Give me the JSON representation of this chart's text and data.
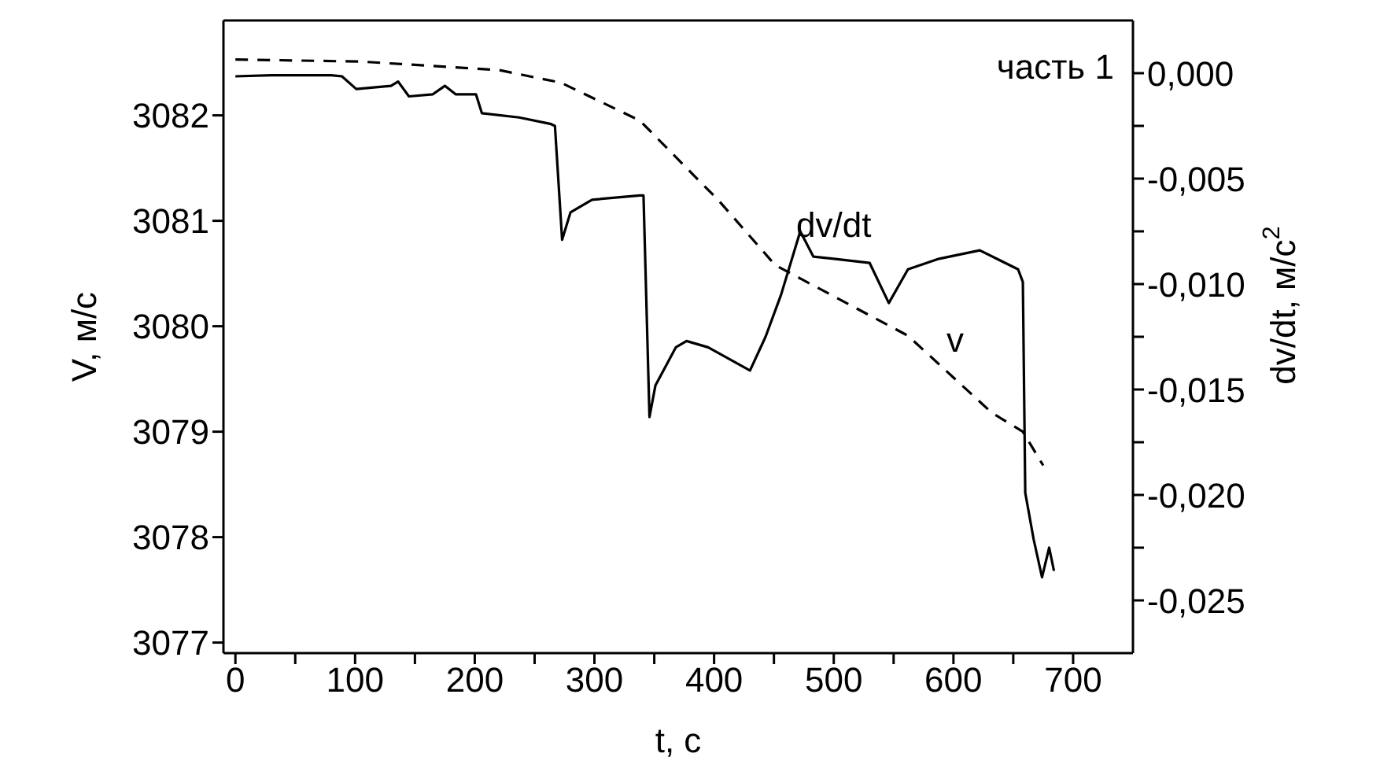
{
  "chart_data": {
    "type": "line",
    "xlabel": "t, с",
    "ylabel": "V, м/с",
    "y2label": "dv/dt, м/с$^{2}$",
    "annotations": [
      "часть 1"
    ],
    "xlim": [
      -10,
      750
    ],
    "xticks": [
      0,
      {
        "value": 50,
        "label": null
      },
      100,
      {
        "value": 150,
        "label": null
      },
      200,
      {
        "value": 250,
        "label": null
      },
      300,
      {
        "value": 350,
        "label": null
      },
      400,
      {
        "value": 450,
        "label": null
      },
      500,
      {
        "value": 550,
        "label": null
      },
      600,
      {
        "value": 650,
        "label": null
      },
      700
    ],
    "ylim": [
      3076.9,
      3082.9
    ],
    "yticks": [
      3077,
      3078,
      3079,
      3080,
      3081,
      3082
    ],
    "y2lim": [
      -0.0275,
      0.0025
    ],
    "y2ticks": [
      {
        "value": 0,
        "label": "0,000"
      },
      {
        "value": -0.0025,
        "label": null
      },
      {
        "value": -0.005,
        "label": "-0,005"
      },
      {
        "value": -0.0075,
        "label": null
      },
      {
        "value": -0.01,
        "label": "-0,010"
      },
      {
        "value": -0.0125,
        "label": null
      },
      {
        "value": -0.015,
        "label": "-0,015"
      },
      {
        "value": -0.0175,
        "label": null
      },
      {
        "value": -0.02,
        "label": "-0,020"
      },
      {
        "value": -0.0225,
        "label": null
      },
      {
        "value": -0.025,
        "label": "-0,025"
      }
    ],
    "marker": "none",
    "series": [
      {
        "name": "v",
        "color": "#000000",
        "line_style": "dashed",
        "x": [
          0,
          105,
          220,
          272,
          338,
          404,
          451,
          562,
          632,
          658,
          675
        ],
        "values": [
          3082.53,
          3082.51,
          3082.43,
          3082.31,
          3081.95,
          3081.19,
          3080.58,
          3079.91,
          3079.18,
          3079.0,
          3078.68
        ]
      },
      {
        "name": "dv/dt",
        "color": "#000000",
        "line_style": "solid",
        "axis": "y2",
        "x": [
          0,
          30,
          80,
          89,
          101,
          130,
          136,
          145,
          165,
          175,
          184,
          201,
          206,
          237,
          263,
          267,
          273,
          280,
          298,
          338,
          341,
          346,
          351,
          368,
          377,
          395,
          430,
          443,
          456,
          472,
          483,
          500,
          530,
          546,
          562,
          588,
          622,
          654,
          658,
          660,
          667,
          674,
          680,
          684
        ],
        "values": [
          -0.00015,
          -0.0001,
          -0.0001,
          -0.00015,
          -0.00075,
          -0.0006,
          -0.0004,
          -0.0011,
          -0.001,
          -0.0006,
          -0.001,
          -0.001,
          -0.0019,
          -0.0021,
          -0.0024,
          -0.0025,
          -0.0079,
          -0.0066,
          -0.006,
          -0.0058,
          -0.0058,
          -0.0163,
          -0.0148,
          -0.013,
          -0.0127,
          -0.013,
          -0.0141,
          -0.0125,
          -0.0105,
          -0.0075,
          -0.0087,
          -0.0088,
          -0.009,
          -0.0109,
          -0.0093,
          -0.0088,
          -0.0084,
          -0.0093,
          -0.0099,
          -0.0199,
          -0.0221,
          -0.0239,
          -0.0225,
          -0.0236
        ]
      }
    ]
  }
}
